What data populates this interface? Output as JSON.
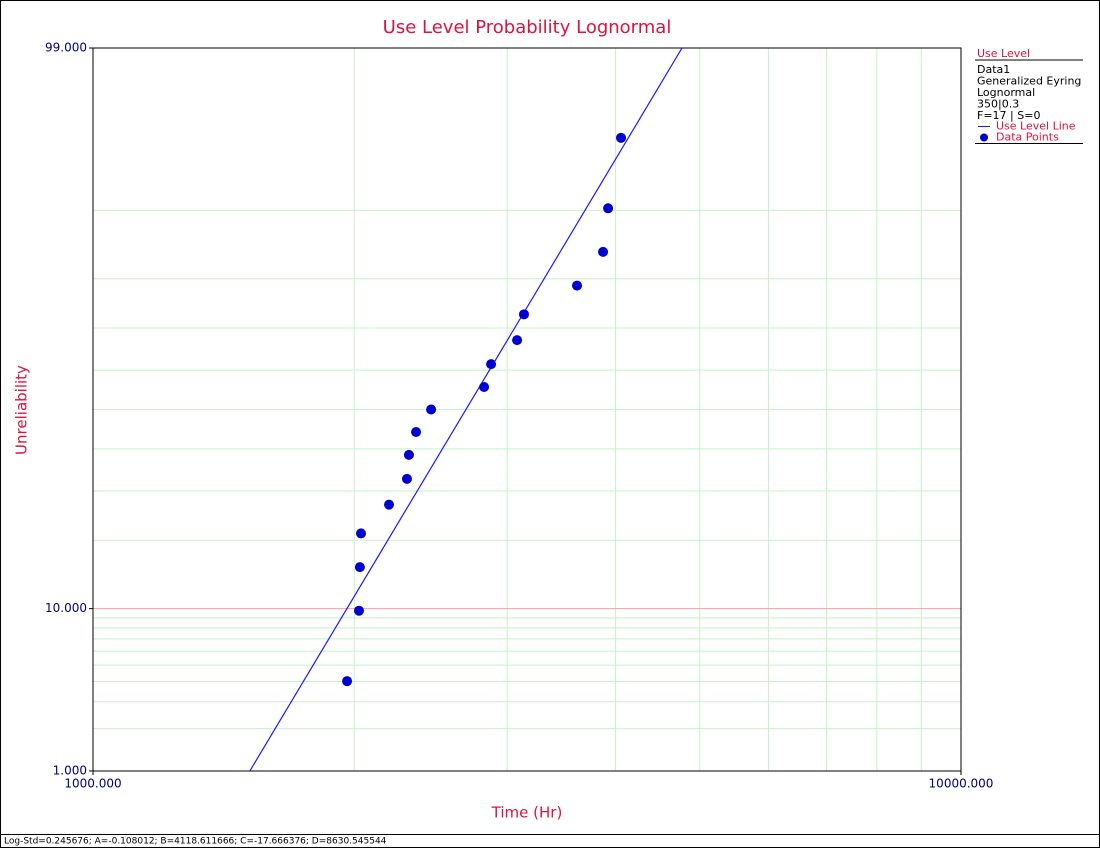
{
  "chart_data": {
    "type": "probability",
    "title": "Use Level Probability Lognormal",
    "x_label": "Time (Hr)",
    "y_label": "Unreliability",
    "x_scale": "log",
    "y_scale": "normal-probability",
    "xlim": [
      1000,
      10000
    ],
    "xticks": [
      {
        "value": 1000,
        "label": "1000.000"
      },
      {
        "value": 10000,
        "label": "10000.000"
      }
    ],
    "x_minor_grid": [
      2000,
      3000,
      4000,
      5000,
      6000,
      7000,
      8000,
      9000
    ],
    "ylim": [
      1,
      99
    ],
    "yticks": [
      {
        "value": 1,
        "label": "1.000"
      },
      {
        "value": 10,
        "label": "10.000"
      },
      {
        "value": 99,
        "label": "99.000"
      }
    ],
    "y_minor_grid": [
      2,
      3,
      4,
      5,
      6,
      7,
      8,
      9,
      20,
      30,
      40,
      50,
      60,
      70,
      80,
      90
    ],
    "grid_color": "#c8f0c8",
    "reference_line": {
      "value": 10,
      "color": "#f4a0a0"
    },
    "series": [
      {
        "name": "Use Level Line",
        "color": "#1a1aff",
        "style": "line",
        "x": [
          1516,
          4771
        ],
        "values": [
          1,
          99
        ]
      },
      {
        "name": "Data Points",
        "color": "#0000d0",
        "style": "points",
        "x": [
          1962,
          2025,
          2030,
          2036,
          2193,
          2300,
          2312,
          2356,
          2452,
          2822,
          2875,
          3080,
          3137,
          3611,
          3869,
          3921,
          4058
        ],
        "values": [
          4.02,
          9.77,
          15.52,
          21.26,
          27.01,
          32.76,
          38.51,
          44.25,
          50.0,
          55.75,
          61.49,
          67.24,
          72.99,
          78.74,
          84.48,
          90.23,
          95.98
        ]
      }
    ],
    "legend": {
      "title": "Use Level",
      "lines": [
        "Data1",
        "Generalized Eyring",
        "Lognormal",
        "350|0.3",
        "F=17 | S=0"
      ],
      "corner": "right"
    },
    "footer": "Log-Std=0.245676; A=-0.108012; B=4118.611666; C=-17.666376; D=8630.545544"
  }
}
